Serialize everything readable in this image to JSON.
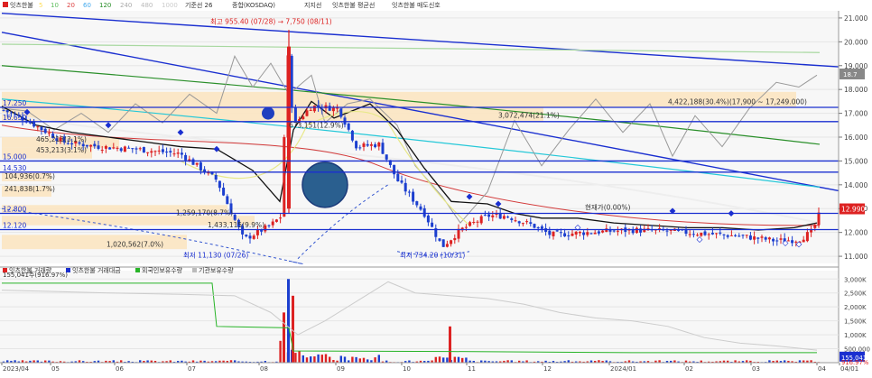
{
  "legend": {
    "stock": "잇츠한불",
    "ma": [
      "5",
      "10",
      "20",
      "60",
      "120",
      "240",
      "480",
      "1000"
    ],
    "items": [
      "기준선 26",
      "종합(KOSDAQ)",
      "지지선",
      "잇츠한불 평균선",
      "잇츠한불 매도신호"
    ]
  },
  "price_axis": [
    {
      "v": 21000,
      "t": "21.000"
    },
    {
      "v": 20000,
      "t": "20.000"
    },
    {
      "v": 19000,
      "t": "19.000"
    },
    {
      "v": 18000,
      "t": "18.000"
    },
    {
      "v": 17000,
      "t": "17.000"
    },
    {
      "v": 16000,
      "t": "16.000"
    },
    {
      "v": 15000,
      "t": "15.000"
    },
    {
      "v": 14000,
      "t": "14.000"
    },
    {
      "v": 13000,
      "t": "13.000"
    },
    {
      "v": 12000,
      "t": "12.000"
    },
    {
      "v": 11000,
      "t": "11.000"
    }
  ],
  "current_price_label": "12.990",
  "current_price": 12990,
  "right_sub_label": "18.7",
  "hlines": [
    {
      "v": 17250,
      "label": "17.250"
    },
    {
      "v": 16650,
      "label": "16.650"
    },
    {
      "v": 15000,
      "label": "15.000"
    },
    {
      "v": 14530,
      "label": "14.530"
    },
    {
      "v": 12800,
      "label": "12.800"
    },
    {
      "v": 12120,
      "label": "12.120"
    }
  ],
  "volume_profile": [
    {
      "v": 17500,
      "label": "4,422,188(30.4%)(17,900 ~ 17,249.000)"
    },
    {
      "v": 16900,
      "label": "3,072,474(21.1%)"
    },
    {
      "v": 15900,
      "label": "465,213(3.1%)"
    },
    {
      "v": 15500,
      "label": "453,213(3.1%)"
    },
    {
      "v": 14400,
      "label": "104,936(0.7%)"
    },
    {
      "v": 13800,
      "label": "241,838(1.7%)"
    },
    {
      "v": 12800,
      "label": "1,259,170(8.7%)"
    },
    {
      "v": 12300,
      "label": "1,433,115(9.9%)"
    },
    {
      "v": 11500,
      "label": "1,020,562(7.0%)"
    }
  ],
  "label_profile_pos": "673,151(12.9%)",
  "label_today": "현재가(0.00%)",
  "annotations": {
    "high": "최고 955.40 (07/28) → 7,750 (08/11)",
    "low1": "최저 11,130 (07/26)",
    "low2": "최저 734.20 (10/31)"
  },
  "volume_panel": {
    "legend": [
      "잇츠한불 거래량",
      "잇츠한불 거래대금",
      "외국인보유수량",
      "기관보유수량"
    ],
    "subtitle": "155,041주(916.97%)",
    "axis": [
      {
        "v": 3000,
        "t": "3,000K"
      },
      {
        "v": 2500,
        "t": "2,500K"
      },
      {
        "v": 2000,
        "t": "2,000K"
      },
      {
        "v": 1500,
        "t": "1,500K"
      },
      {
        "v": 1000,
        "t": "1,000K"
      },
      {
        "v": 500,
        "t": "500,000"
      }
    ],
    "last_value": "155,041",
    "last_value2": "916.97%"
  },
  "x_axis": [
    "2023/04",
    "05",
    "06",
    "07",
    "08",
    "09",
    "10",
    "11",
    "12",
    "2024/01",
    "02",
    "03",
    "04",
    "04/01"
  ],
  "colors": {
    "up": "#dd2222",
    "down": "#1c3fcf",
    "band": "#fbe6c4",
    "box": "#1a2fd0"
  }
}
